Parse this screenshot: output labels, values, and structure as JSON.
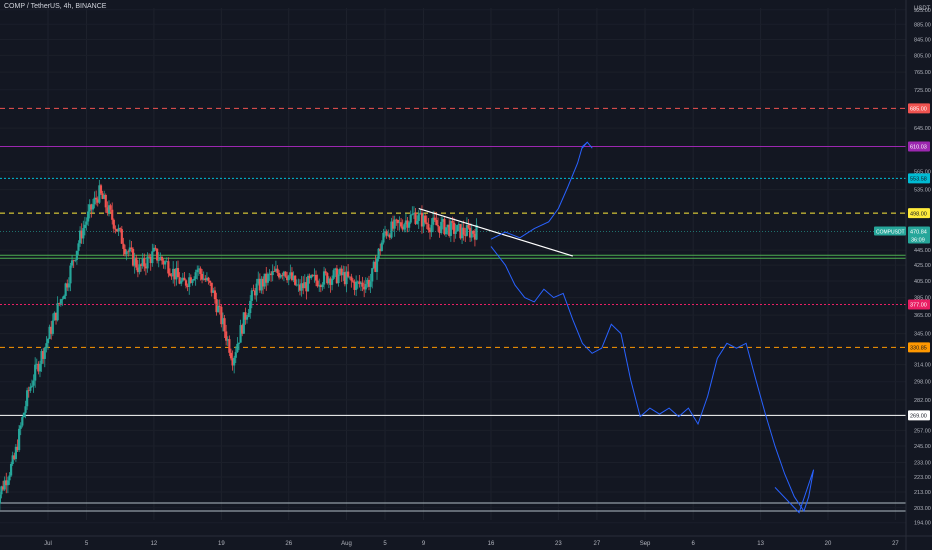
{
  "header": {
    "symbol_line": "COMP / TetherUS, 4h, BINANCE"
  },
  "currency_label": "USDT",
  "colors": {
    "background": "#131722",
    "up": "#26a69a",
    "down": "#ef5350",
    "drawing": "#2962ff",
    "trendline": "#ffffff"
  },
  "chart_data": {
    "type": "candlestick",
    "symbol": "COMPUSDT",
    "timeframe": "4h",
    "exchange": "BINANCE",
    "y_scale": "log",
    "ylim": [
      196,
      925
    ],
    "y_ticks": [
      925.0,
      885.0,
      845.0,
      805.0,
      765.0,
      725.0,
      645.0,
      565.0,
      535.0,
      445.0,
      425.0,
      405.0,
      385.0,
      365.0,
      345.0,
      314.0,
      298.0,
      282.0,
      257.0,
      245.0,
      233.0,
      223.0,
      213.0,
      203.0,
      194.0
    ],
    "x_ticks": [
      {
        "label": "Jul",
        "day": 0
      },
      {
        "label": "5",
        "day": 4
      },
      {
        "label": "12",
        "day": 11
      },
      {
        "label": "19",
        "day": 18
      },
      {
        "label": "26",
        "day": 25
      },
      {
        "label": "Aug",
        "day": 31
      },
      {
        "label": "5",
        "day": 35
      },
      {
        "label": "9",
        "day": 39
      },
      {
        "label": "16",
        "day": 46
      },
      {
        "label": "23",
        "day": 53
      },
      {
        "label": "27",
        "day": 57
      },
      {
        "label": "Sep",
        "day": 62
      },
      {
        "label": "6",
        "day": 67
      },
      {
        "label": "13",
        "day": 74
      },
      {
        "label": "20",
        "day": 81
      },
      {
        "label": "27",
        "day": 88
      }
    ],
    "current_price": {
      "label": "COMPUSDT",
      "value": "470.84",
      "countdown": "36:09"
    },
    "levels": [
      {
        "value": 685.0,
        "label": "685.00",
        "color": "#ef5350",
        "style": "dashed"
      },
      {
        "value": 610.03,
        "label": "610.03",
        "color": "#9c27b0",
        "style": "solid"
      },
      {
        "value": 553.58,
        "label": "553.58",
        "color": "#00bcd4",
        "style": "dotted"
      },
      {
        "value": 498.0,
        "label": "498.00",
        "color": "#ffeb3b",
        "style": "dashed"
      },
      {
        "value": 438.0,
        "label": "",
        "color": "#4caf50",
        "style": "solid"
      },
      {
        "value": 377.0,
        "label": "377.00",
        "color": "#e91e63",
        "style": "dotted"
      },
      {
        "value": 330.85,
        "label": "330.85",
        "color": "#ff9800",
        "style": "dashed"
      },
      {
        "value": 269.0,
        "label": "269.00",
        "color": "#ffffff",
        "style": "solid"
      },
      {
        "value": 201.0,
        "label": "",
        "color": "#b0bec5",
        "style": "solid"
      }
    ],
    "trendline": {
      "from": {
        "day": 38.5,
        "price": 505
      },
      "to": {
        "day": 54.5,
        "price": 437
      }
    },
    "projection_up": [
      [
        46,
        460
      ],
      [
        47.5,
        470
      ],
      [
        49,
        462
      ],
      [
        50.5,
        475
      ],
      [
        52,
        485
      ],
      [
        53,
        505
      ],
      [
        54,
        540
      ],
      [
        55,
        580
      ],
      [
        55.5,
        610
      ],
      [
        56,
        618
      ]
    ],
    "projection_down": [
      [
        46,
        450
      ],
      [
        47.5,
        425
      ],
      [
        48.5,
        400
      ],
      [
        49.5,
        385
      ],
      [
        50.5,
        380
      ],
      [
        51.5,
        395
      ],
      [
        52.5,
        385
      ],
      [
        53.5,
        390
      ],
      [
        54.5,
        360
      ],
      [
        55.5,
        335
      ],
      [
        56.5,
        325
      ],
      [
        57.5,
        330
      ],
      [
        58.5,
        355
      ],
      [
        59.5,
        345
      ],
      [
        60.5,
        300
      ],
      [
        61.5,
        268
      ],
      [
        62.5,
        275
      ],
      [
        63.5,
        270
      ],
      [
        64.5,
        275
      ],
      [
        65.5,
        268
      ],
      [
        66.5,
        275
      ],
      [
        67.5,
        262
      ],
      [
        68.5,
        285
      ],
      [
        69.5,
        320
      ],
      [
        70.5,
        335
      ],
      [
        71.5,
        330
      ],
      [
        72.5,
        335
      ],
      [
        73.5,
        300
      ],
      [
        74.5,
        270
      ],
      [
        75.5,
        245
      ],
      [
        76.5,
        225
      ],
      [
        77.5,
        210
      ],
      [
        78.5,
        201
      ],
      [
        79,
        210
      ],
      [
        79.5,
        228
      ],
      [
        78,
        200
      ],
      [
        75.5,
        216
      ]
    ]
  }
}
